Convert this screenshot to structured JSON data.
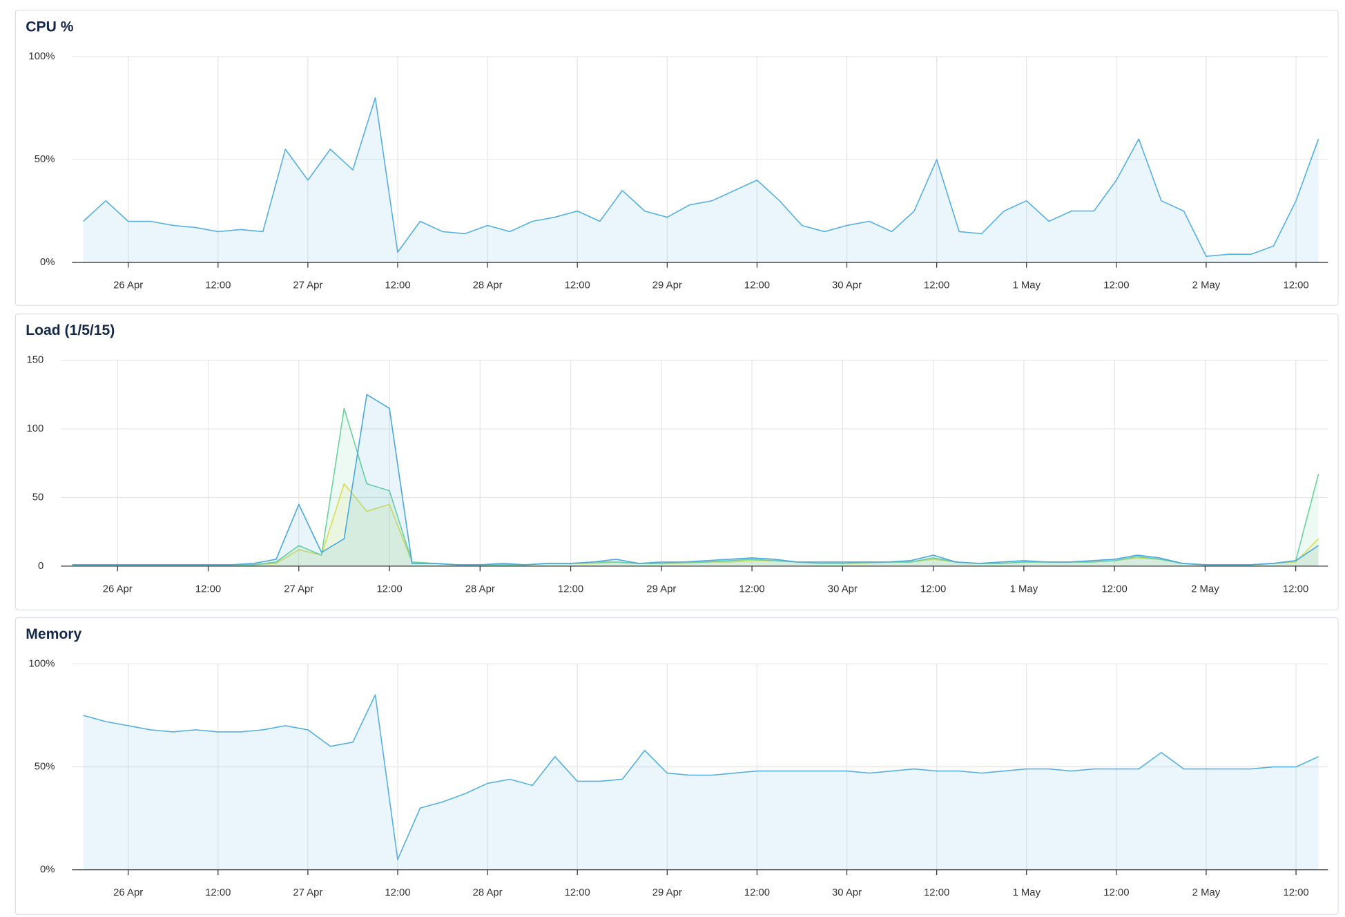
{
  "chart_data": [
    {
      "type": "area",
      "title": "CPU %",
      "x": [
        "25 Apr 18:00",
        "25 Apr 21:00",
        "26 Apr 00:00",
        "26 Apr 03:00",
        "26 Apr 06:00",
        "26 Apr 09:00",
        "26 Apr 12:00",
        "26 Apr 15:00",
        "26 Apr 18:00",
        "26 Apr 21:00",
        "27 Apr 00:00",
        "27 Apr 03:00",
        "27 Apr 06:00",
        "27 Apr 09:00",
        "27 Apr 12:00",
        "27 Apr 15:00",
        "27 Apr 18:00",
        "27 Apr 21:00",
        "28 Apr 00:00",
        "28 Apr 03:00",
        "28 Apr 06:00",
        "28 Apr 09:00",
        "28 Apr 12:00",
        "28 Apr 15:00",
        "28 Apr 18:00",
        "28 Apr 21:00",
        "29 Apr 00:00",
        "29 Apr 03:00",
        "29 Apr 06:00",
        "29 Apr 09:00",
        "29 Apr 12:00",
        "29 Apr 15:00",
        "29 Apr 18:00",
        "29 Apr 21:00",
        "30 Apr 00:00",
        "30 Apr 03:00",
        "30 Apr 06:00",
        "30 Apr 09:00",
        "30 Apr 12:00",
        "30 Apr 15:00",
        "30 Apr 18:00",
        "30 Apr 21:00",
        "1 May 00:00",
        "1 May 03:00",
        "1 May 06:00",
        "1 May 09:00",
        "1 May 12:00",
        "1 May 15:00",
        "1 May 18:00",
        "1 May 21:00",
        "2 May 00:00",
        "2 May 03:00",
        "2 May 06:00",
        "2 May 09:00",
        "2 May 12:00",
        "2 May 15:00"
      ],
      "series": [
        {
          "color": "#56b0e4",
          "values": [
            20,
            30,
            20,
            20,
            18,
            17,
            15,
            16,
            15,
            55,
            40,
            55,
            45,
            80,
            5,
            20,
            15,
            14,
            18,
            15,
            20,
            22,
            25,
            20,
            35,
            25,
            22,
            28,
            30,
            35,
            40,
            30,
            18,
            15,
            18,
            20,
            15,
            25,
            50,
            15,
            14,
            25,
            30,
            20,
            25,
            25,
            40,
            60,
            30,
            25,
            3,
            4,
            4,
            8,
            30,
            60
          ]
        }
      ],
      "xlim": [
        "25 Apr 16:30",
        "2 May 16:15"
      ],
      "xticks": [
        {
          "value": "26 Apr 00:00",
          "label": "26 Apr"
        },
        {
          "value": "26 Apr 12:00",
          "label": "12:00"
        },
        {
          "value": "27 Apr 00:00",
          "label": "27 Apr"
        },
        {
          "value": "27 Apr 12:00",
          "label": "12:00"
        },
        {
          "value": "28 Apr 00:00",
          "label": "28 Apr"
        },
        {
          "value": "28 Apr 12:00",
          "label": "12:00"
        },
        {
          "value": "29 Apr 00:00",
          "label": "29 Apr"
        },
        {
          "value": "29 Apr 12:00",
          "label": "12:00"
        },
        {
          "value": "30 Apr 00:00",
          "label": "30 Apr"
        },
        {
          "value": "30 Apr 12:00",
          "label": "12:00"
        },
        {
          "value": "1 May 00:00",
          "label": "1 May"
        },
        {
          "value": "1 May 12:00",
          "label": "12:00"
        },
        {
          "value": "2 May 00:00",
          "label": "2 May"
        },
        {
          "value": "2 May 12:00",
          "label": "12:00"
        }
      ],
      "ylim": [
        0,
        100
      ],
      "yticks": [
        {
          "value": 0,
          "label": "0%"
        },
        {
          "value": 50,
          "label": "50%"
        },
        {
          "value": 100,
          "label": "100%"
        }
      ],
      "grid": true
    },
    {
      "type": "area",
      "title": "Load (1/5/15)",
      "x": [
        "25 Apr 18:00",
        "25 Apr 21:00",
        "26 Apr 00:00",
        "26 Apr 03:00",
        "26 Apr 06:00",
        "26 Apr 09:00",
        "26 Apr 12:00",
        "26 Apr 15:00",
        "26 Apr 18:00",
        "26 Apr 21:00",
        "27 Apr 00:00",
        "27 Apr 03:00",
        "27 Apr 06:00",
        "27 Apr 09:00",
        "27 Apr 12:00",
        "27 Apr 15:00",
        "27 Apr 18:00",
        "27 Apr 21:00",
        "28 Apr 00:00",
        "28 Apr 03:00",
        "28 Apr 06:00",
        "28 Apr 09:00",
        "28 Apr 12:00",
        "28 Apr 15:00",
        "28 Apr 18:00",
        "28 Apr 21:00",
        "29 Apr 00:00",
        "29 Apr 03:00",
        "29 Apr 06:00",
        "29 Apr 09:00",
        "29 Apr 12:00",
        "29 Apr 15:00",
        "29 Apr 18:00",
        "29 Apr 21:00",
        "30 Apr 00:00",
        "30 Apr 03:00",
        "30 Apr 06:00",
        "30 Apr 09:00",
        "30 Apr 12:00",
        "30 Apr 15:00",
        "30 Apr 18:00",
        "30 Apr 21:00",
        "1 May 00:00",
        "1 May 03:00",
        "1 May 06:00",
        "1 May 09:00",
        "1 May 12:00",
        "1 May 15:00",
        "1 May 18:00",
        "1 May 21:00",
        "2 May 00:00",
        "2 May 03:00",
        "2 May 06:00",
        "2 May 09:00",
        "2 May 12:00",
        "2 May 15:00"
      ],
      "series": [
        {
          "color": "#e6de4c",
          "values": [
            1,
            1,
            1,
            1,
            1,
            1,
            1,
            1,
            1,
            2,
            12,
            8,
            60,
            40,
            45,
            3,
            2,
            1,
            1,
            1,
            1,
            2,
            2,
            2,
            3,
            2,
            2,
            2,
            3,
            3,
            4,
            4,
            3,
            2,
            2,
            2,
            3,
            3,
            5,
            3,
            2,
            2,
            3,
            3,
            3,
            3,
            4,
            6,
            5,
            2,
            1,
            1,
            1,
            2,
            3,
            20
          ]
        },
        {
          "color": "#6cd39c",
          "values": [
            1,
            1,
            1,
            1,
            1,
            1,
            1,
            1,
            1,
            3,
            15,
            8,
            115,
            60,
            55,
            3,
            2,
            1,
            1,
            1,
            1,
            2,
            2,
            3,
            3,
            2,
            2,
            3,
            3,
            4,
            5,
            4,
            3,
            2,
            2,
            3,
            3,
            3,
            6,
            3,
            2,
            2,
            3,
            3,
            3,
            3,
            4,
            7,
            5,
            2,
            1,
            1,
            1,
            2,
            4,
            67
          ]
        },
        {
          "color": "#4aa8e0",
          "values": [
            1,
            1,
            1,
            1,
            1,
            1,
            1,
            1,
            2,
            5,
            45,
            10,
            20,
            125,
            115,
            2,
            2,
            1,
            1,
            2,
            1,
            2,
            2,
            3,
            5,
            2,
            3,
            3,
            4,
            5,
            6,
            5,
            3,
            3,
            3,
            3,
            3,
            4,
            8,
            3,
            2,
            3,
            4,
            3,
            3,
            4,
            5,
            8,
            6,
            2,
            1,
            1,
            1,
            2,
            4,
            15
          ]
        }
      ],
      "xlim": [
        "25 Apr 16:30",
        "2 May 16:15"
      ],
      "xticks": [
        {
          "value": "26 Apr 00:00",
          "label": "26 Apr"
        },
        {
          "value": "26 Apr 12:00",
          "label": "12:00"
        },
        {
          "value": "27 Apr 00:00",
          "label": "27 Apr"
        },
        {
          "value": "27 Apr 12:00",
          "label": "12:00"
        },
        {
          "value": "28 Apr 00:00",
          "label": "28 Apr"
        },
        {
          "value": "28 Apr 12:00",
          "label": "12:00"
        },
        {
          "value": "29 Apr 00:00",
          "label": "29 Apr"
        },
        {
          "value": "29 Apr 12:00",
          "label": "12:00"
        },
        {
          "value": "30 Apr 00:00",
          "label": "30 Apr"
        },
        {
          "value": "30 Apr 12:00",
          "label": "12:00"
        },
        {
          "value": "1 May 00:00",
          "label": "1 May"
        },
        {
          "value": "1 May 12:00",
          "label": "12:00"
        },
        {
          "value": "2 May 00:00",
          "label": "2 May"
        },
        {
          "value": "2 May 12:00",
          "label": "12:00"
        }
      ],
      "ylim": [
        0,
        150
      ],
      "yticks": [
        0,
        50,
        100,
        150
      ],
      "grid": true
    },
    {
      "type": "area",
      "title": "Memory",
      "x": [
        "25 Apr 18:00",
        "25 Apr 21:00",
        "26 Apr 00:00",
        "26 Apr 03:00",
        "26 Apr 06:00",
        "26 Apr 09:00",
        "26 Apr 12:00",
        "26 Apr 15:00",
        "26 Apr 18:00",
        "26 Apr 21:00",
        "27 Apr 00:00",
        "27 Apr 03:00",
        "27 Apr 06:00",
        "27 Apr 09:00",
        "27 Apr 12:00",
        "27 Apr 15:00",
        "27 Apr 18:00",
        "27 Apr 21:00",
        "28 Apr 00:00",
        "28 Apr 03:00",
        "28 Apr 06:00",
        "28 Apr 09:00",
        "28 Apr 12:00",
        "28 Apr 15:00",
        "28 Apr 18:00",
        "28 Apr 21:00",
        "29 Apr 00:00",
        "29 Apr 03:00",
        "29 Apr 06:00",
        "29 Apr 09:00",
        "29 Apr 12:00",
        "29 Apr 15:00",
        "29 Apr 18:00",
        "29 Apr 21:00",
        "30 Apr 00:00",
        "30 Apr 03:00",
        "30 Apr 06:00",
        "30 Apr 09:00",
        "30 Apr 12:00",
        "30 Apr 15:00",
        "30 Apr 18:00",
        "30 Apr 21:00",
        "1 May 00:00",
        "1 May 03:00",
        "1 May 06:00",
        "1 May 09:00",
        "1 May 12:00",
        "1 May 15:00",
        "1 May 18:00",
        "1 May 21:00",
        "2 May 00:00",
        "2 May 03:00",
        "2 May 06:00",
        "2 May 09:00",
        "2 May 12:00",
        "2 May 15:00"
      ],
      "series": [
        {
          "color": "#56b0e4",
          "values": [
            75,
            72,
            70,
            68,
            67,
            68,
            67,
            67,
            68,
            70,
            68,
            60,
            62,
            85,
            5,
            30,
            33,
            37,
            42,
            44,
            41,
            55,
            43,
            43,
            44,
            58,
            47,
            46,
            46,
            47,
            48,
            48,
            48,
            48,
            48,
            47,
            48,
            49,
            48,
            48,
            47,
            48,
            49,
            49,
            48,
            49,
            49,
            49,
            57,
            49,
            49,
            49,
            49,
            50,
            50,
            55
          ]
        }
      ],
      "xlim": [
        "25 Apr 16:30",
        "2 May 16:15"
      ],
      "xticks": [
        {
          "value": "26 Apr 00:00",
          "label": "26 Apr"
        },
        {
          "value": "26 Apr 12:00",
          "label": "12:00"
        },
        {
          "value": "27 Apr 00:00",
          "label": "27 Apr"
        },
        {
          "value": "27 Apr 12:00",
          "label": "12:00"
        },
        {
          "value": "28 Apr 00:00",
          "label": "28 Apr"
        },
        {
          "value": "28 Apr 12:00",
          "label": "12:00"
        },
        {
          "value": "29 Apr 00:00",
          "label": "29 Apr"
        },
        {
          "value": "29 Apr 12:00",
          "label": "12:00"
        },
        {
          "value": "30 Apr 00:00",
          "label": "30 Apr"
        },
        {
          "value": "30 Apr 12:00",
          "label": "12:00"
        },
        {
          "value": "1 May 00:00",
          "label": "1 May"
        },
        {
          "value": "1 May 12:00",
          "label": "12:00"
        },
        {
          "value": "2 May 00:00",
          "label": "2 May"
        },
        {
          "value": "2 May 12:00",
          "label": "12:00"
        }
      ],
      "ylim": [
        0,
        100
      ],
      "yticks": [
        {
          "value": 0,
          "label": "0%"
        },
        {
          "value": 50,
          "label": "50%"
        },
        {
          "value": 100,
          "label": "100%"
        }
      ],
      "grid": true
    }
  ]
}
